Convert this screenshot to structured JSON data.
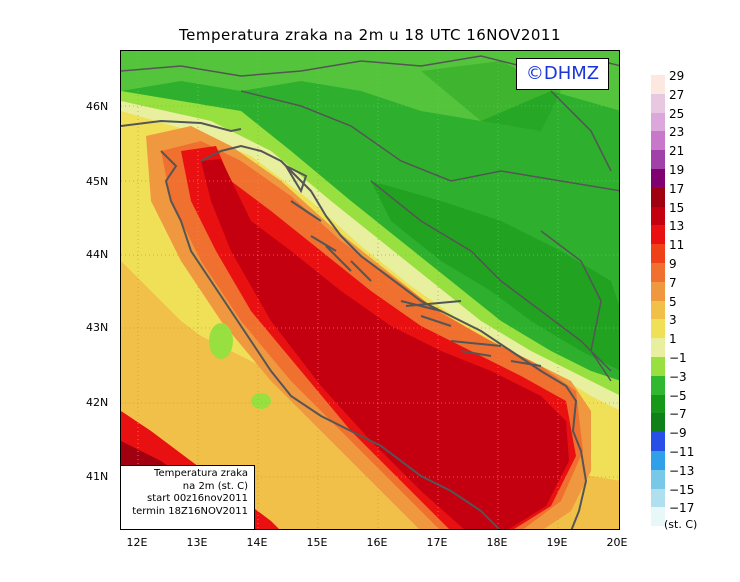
{
  "title": "Temperatura zraka na 2m u 18 UTC 16NOV2011",
  "copyright": "©DHMZ",
  "info": {
    "line1": "Temperatura zraka",
    "line2": "na 2m (st. C)",
    "line3": "start 00z16nov2011",
    "line4": "termin 18Z16NOV2011"
  },
  "lat_labels": [
    "46N",
    "45N",
    "44N",
    "43N",
    "42N",
    "41N"
  ],
  "lon_labels": [
    "12E",
    "13E",
    "14E",
    "15E",
    "16E",
    "17E",
    "18E",
    "19E",
    "20E"
  ],
  "legend": {
    "unit": "(st. C)",
    "labels": [
      "29",
      "27",
      "25",
      "23",
      "21",
      "19",
      "17",
      "15",
      "13",
      "11",
      "9",
      "7",
      "5",
      "3",
      "1",
      "−1",
      "−3",
      "−5",
      "−7",
      "−9",
      "−11",
      "−13",
      "−15",
      "−17"
    ],
    "colors": [
      "#fde8e0",
      "#e8c8e0",
      "#dca8dc",
      "#c878c8",
      "#a040a8",
      "#800070",
      "#a00010",
      "#c40010",
      "#e81010",
      "#f04018",
      "#f07030",
      "#f09840",
      "#f0c048",
      "#f0e058",
      "#e8f0a0",
      "#98e040",
      "#30b830",
      "#189818",
      "#108018",
      "#2850e8",
      "#30a0e8",
      "#78c8e8",
      "#b0e0f0",
      "#e8f8f8"
    ]
  }
}
